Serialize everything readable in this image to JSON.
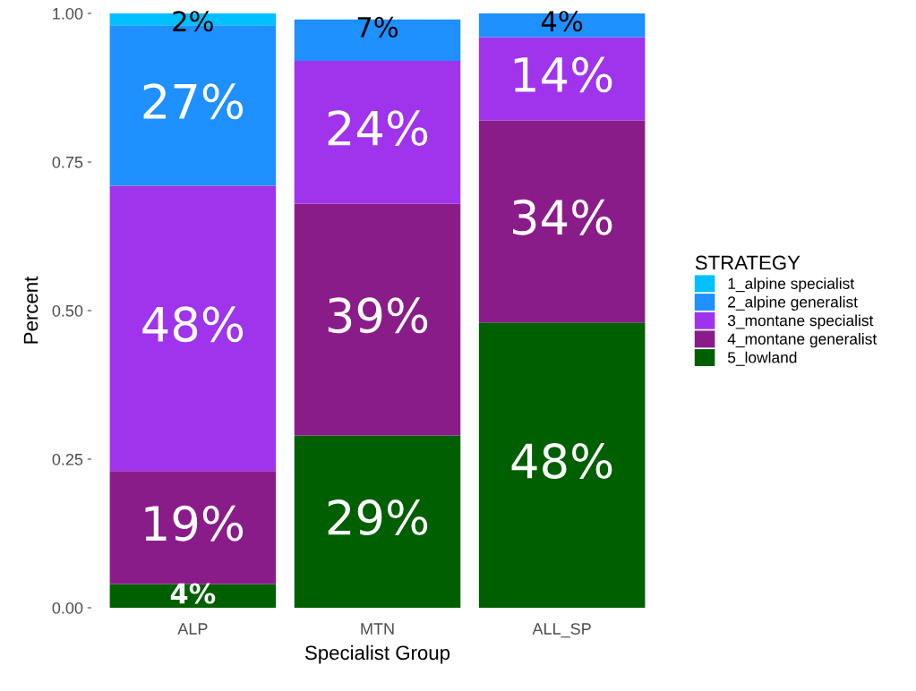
{
  "chart_data": {
    "type": "bar",
    "stacked": true,
    "xlabel": "Specialist Group",
    "ylabel": "Percent",
    "legend_title": "STRATEGY",
    "legend": "right",
    "categories": [
      "ALP",
      "MTN",
      "ALL_SP"
    ],
    "series": [
      {
        "name": "5_lowland",
        "color": "#005f00",
        "values": [
          0.04,
          0.29,
          0.48
        ],
        "value_labels": [
          "4%",
          "29%",
          "48%"
        ]
      },
      {
        "name": "4_montane generalist",
        "color": "#8a1c8a",
        "values": [
          0.19,
          0.39,
          0.34
        ],
        "value_labels": [
          "19%",
          "39%",
          "34%"
        ]
      },
      {
        "name": "3_montane specialist",
        "color": "#a033ec",
        "values": [
          0.48,
          0.24,
          0.14
        ],
        "value_labels": [
          "48%",
          "24%",
          "14%"
        ]
      },
      {
        "name": "2_alpine generalist",
        "color": "#1e90ff",
        "values": [
          0.27,
          0.07,
          0.04
        ],
        "value_labels": [
          "27%",
          "7%",
          "4%"
        ]
      },
      {
        "name": "1_alpine specialist",
        "color": "#00bfff",
        "values": [
          0.02,
          null,
          null
        ],
        "value_labels": [
          "2%",
          null,
          null
        ]
      }
    ],
    "ylim": [
      0,
      1
    ],
    "yticks": [
      {
        "value": 0,
        "label": "0.00"
      },
      {
        "value": 0.25,
        "label": "0.25"
      },
      {
        "value": 0.5,
        "label": "0.50"
      },
      {
        "value": 0.75,
        "label": "0.75"
      },
      {
        "value": 1,
        "label": "1.00"
      }
    ],
    "grid": false
  }
}
